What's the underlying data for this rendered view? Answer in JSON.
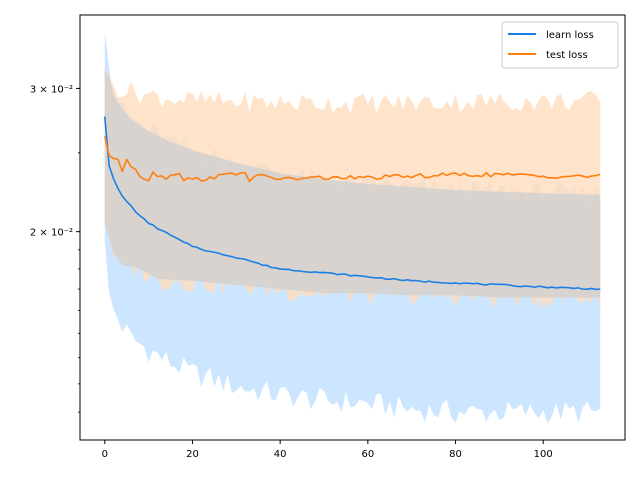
{
  "chart_data": {
    "type": "line",
    "title": "",
    "xlabel": "",
    "ylabel": "",
    "yscale": "log",
    "xlim": [
      -5.65,
      118.65
    ],
    "ylim": [
      0.01109,
      0.03693
    ],
    "grid": false,
    "legend_position": "top-right",
    "x_ticks": [
      0,
      20,
      40,
      60,
      80,
      100
    ],
    "x_tick_labels": [
      "0",
      "20",
      "40",
      "60",
      "80",
      "100"
    ],
    "y_ticks": [
      0.02,
      0.03
    ],
    "y_tick_labels": [
      "2 × 10⁻²",
      "3 × 10⁻²"
    ],
    "colors": {
      "learn_line": "#1a80e5",
      "learn_band": "#cce6ff",
      "test_line": "#ff7f0e",
      "test_band": "#ffdcbd",
      "overlap_band": "#d6d2cf"
    },
    "series": [
      {
        "name": "learn loss",
        "color": "#1a80e5",
        "anchors": [
          [
            0,
            0.0277
          ],
          [
            1,
            0.0241
          ],
          [
            2,
            0.0232
          ],
          [
            3,
            0.0226
          ],
          [
            4,
            0.0221
          ],
          [
            6,
            0.0215
          ],
          [
            8,
            0.0209
          ],
          [
            10,
            0.0205
          ],
          [
            12,
            0.0202
          ],
          [
            15,
            0.0198
          ],
          [
            18,
            0.0194
          ],
          [
            20,
            0.0192
          ],
          [
            24,
            0.0189
          ],
          [
            28,
            0.0187
          ],
          [
            32,
            0.0185
          ],
          [
            36,
            0.0182
          ],
          [
            40,
            0.018
          ],
          [
            50,
            0.0178
          ],
          [
            60,
            0.0176
          ],
          [
            70,
            0.0174
          ],
          [
            80,
            0.0173
          ],
          [
            90,
            0.0172
          ],
          [
            100,
            0.0171
          ],
          [
            113,
            0.017
          ]
        ],
        "band_lower_anchors": [
          [
            0,
            0.0195
          ],
          [
            1,
            0.0168
          ],
          [
            2,
            0.016
          ],
          [
            4,
            0.0153
          ],
          [
            6,
            0.0148
          ],
          [
            10,
            0.0143
          ],
          [
            15,
            0.0138
          ],
          [
            20,
            0.0134
          ],
          [
            30,
            0.0129
          ],
          [
            40,
            0.0126
          ],
          [
            50,
            0.0124
          ],
          [
            60,
            0.0123
          ],
          [
            70,
            0.0121
          ],
          [
            80,
            0.012
          ],
          [
            90,
            0.012
          ],
          [
            100,
            0.012
          ],
          [
            113,
            0.012
          ]
        ],
        "band_upper_anchors": [
          [
            0,
            0.0352
          ],
          [
            1,
            0.0318
          ],
          [
            2,
            0.0295
          ],
          [
            4,
            0.0283
          ],
          [
            6,
            0.0275
          ],
          [
            10,
            0.0266
          ],
          [
            15,
            0.0258
          ],
          [
            20,
            0.0252
          ],
          [
            30,
            0.0243
          ],
          [
            40,
            0.0236
          ],
          [
            50,
            0.0232
          ],
          [
            60,
            0.0229
          ],
          [
            70,
            0.0227
          ],
          [
            80,
            0.0225
          ],
          [
            90,
            0.0224
          ],
          [
            100,
            0.0223
          ],
          [
            113,
            0.0222
          ]
        ]
      },
      {
        "name": "test loss",
        "color": "#ff7f0e",
        "anchors": [
          [
            0,
            0.0262
          ],
          [
            1,
            0.0248
          ],
          [
            3,
            0.0244
          ],
          [
            4,
            0.0238
          ],
          [
            5,
            0.0246
          ],
          [
            6,
            0.0241
          ],
          [
            7,
            0.024
          ],
          [
            8,
            0.0234
          ],
          [
            10,
            0.0232
          ],
          [
            11,
            0.0236
          ],
          [
            14,
            0.0233
          ],
          [
            17,
            0.0237
          ],
          [
            18,
            0.0232
          ],
          [
            22,
            0.0232
          ],
          [
            26,
            0.0234
          ],
          [
            28,
            0.0235
          ],
          [
            32,
            0.0237
          ],
          [
            33,
            0.0231
          ],
          [
            36,
            0.0235
          ],
          [
            40,
            0.0232
          ],
          [
            50,
            0.0233
          ],
          [
            60,
            0.0233
          ],
          [
            70,
            0.0234
          ],
          [
            80,
            0.0235
          ],
          [
            90,
            0.0235
          ],
          [
            100,
            0.0234
          ],
          [
            110,
            0.0234
          ],
          [
            113,
            0.0235
          ]
        ],
        "band_lower_anchors": [
          [
            0,
            0.0205
          ],
          [
            2,
            0.0188
          ],
          [
            4,
            0.0182
          ],
          [
            8,
            0.018
          ],
          [
            12,
            0.0175
          ],
          [
            20,
            0.0174
          ],
          [
            30,
            0.0172
          ],
          [
            40,
            0.017
          ],
          [
            50,
            0.0168
          ],
          [
            60,
            0.0168
          ],
          [
            70,
            0.0167
          ],
          [
            80,
            0.0167
          ],
          [
            90,
            0.0166
          ],
          [
            100,
            0.0166
          ],
          [
            113,
            0.0166
          ]
        ],
        "band_upper_anchors": [
          [
            0,
            0.0318
          ],
          [
            2,
            0.0302
          ],
          [
            4,
            0.03
          ],
          [
            8,
            0.0296
          ],
          [
            12,
            0.0293
          ],
          [
            20,
            0.029
          ],
          [
            30,
            0.0289
          ],
          [
            40,
            0.0288
          ],
          [
            50,
            0.0288
          ],
          [
            60,
            0.0288
          ],
          [
            70,
            0.0288
          ],
          [
            80,
            0.0289
          ],
          [
            90,
            0.0289
          ],
          [
            100,
            0.0289
          ],
          [
            113,
            0.029
          ]
        ]
      }
    ]
  }
}
